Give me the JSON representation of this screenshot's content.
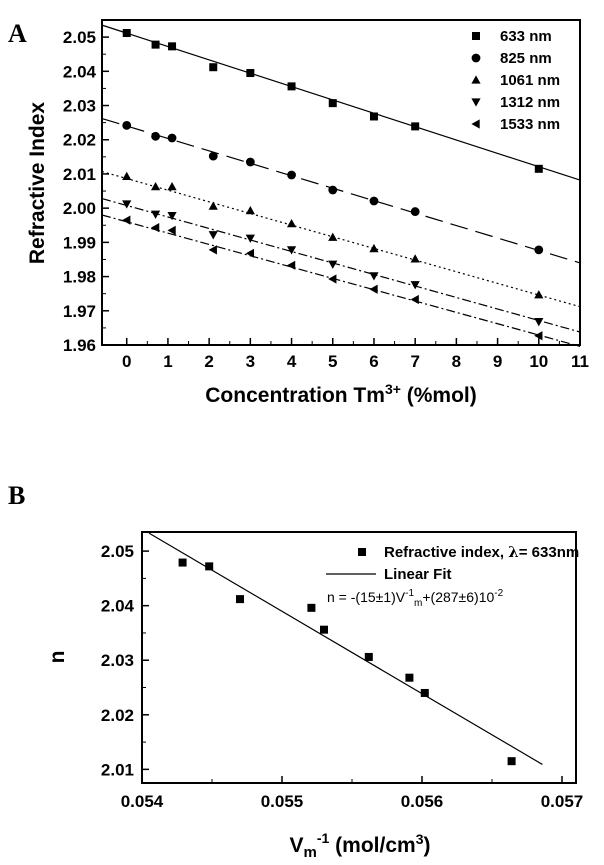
{
  "chart_data": [
    {
      "panel": "A",
      "type": "scatter",
      "xlabel": "Concentration Tm",
      "xlabel_sup": "3+",
      "xlabel_tail": " (%mol)",
      "ylabel": "Refractive Index",
      "xlim": [
        -0.6,
        11
      ],
      "ylim": [
        1.96,
        2.055
      ],
      "xticks": [
        0,
        1,
        2,
        3,
        4,
        5,
        6,
        7,
        8,
        9,
        10,
        11
      ],
      "yticks": [
        1.96,
        1.97,
        1.98,
        1.99,
        2.0,
        2.01,
        2.02,
        2.03,
        2.04,
        2.05
      ],
      "ytick_labels": [
        "1.96",
        "1.97",
        "1.98",
        "1.99",
        "2.00",
        "2.01",
        "2.02",
        "2.03",
        "2.04",
        "2.05"
      ],
      "legend_position": "top-right",
      "series": [
        {
          "name": "633 nm",
          "marker": "square",
          "dash": "solid",
          "x": [
            0,
            0.7,
            1.1,
            2.1,
            3,
            4,
            5,
            6,
            7,
            10
          ],
          "y": [
            2.0512,
            2.0478,
            2.0473,
            2.0412,
            2.0395,
            2.0356,
            2.0307,
            2.0268,
            2.0239,
            2.0115
          ],
          "fit": [
            [
              -0.6,
              2.0535
            ],
            [
              11,
              2.0082
            ]
          ]
        },
        {
          "name": "825 nm",
          "marker": "circle",
          "dash": "longdash",
          "x": [
            0,
            0.7,
            1.1,
            2.1,
            3,
            4,
            5,
            6,
            7,
            10
          ],
          "y": [
            2.0242,
            2.021,
            2.0205,
            2.0152,
            2.0135,
            2.0097,
            2.0053,
            2.0021,
            1.999,
            1.9878
          ],
          "fit": [
            [
              -0.6,
              2.0262
            ],
            [
              11,
              1.984
            ]
          ]
        },
        {
          "name": "1061 nm",
          "marker": "triangle-up",
          "dash": "dotted",
          "x": [
            0,
            0.7,
            1.1,
            2.1,
            3,
            4,
            5,
            6,
            7,
            10
          ],
          "y": [
            2.0093,
            2.0063,
            2.0063,
            2.0006,
            1.9993,
            1.9955,
            1.9915,
            1.9882,
            1.9852,
            1.9747
          ],
          "fit": [
            [
              -0.6,
              2.0107
            ],
            [
              11,
              1.9712
            ]
          ]
        },
        {
          "name": "1312 nm",
          "marker": "triangle-down",
          "dash": "dashdot",
          "x": [
            0,
            0.7,
            1.1,
            2.1,
            3,
            4,
            5,
            6,
            7,
            10
          ],
          "y": [
            2.0012,
            1.9982,
            1.9978,
            1.9922,
            1.9912,
            1.9878,
            1.9836,
            1.9802,
            1.9776,
            1.9668
          ],
          "fit": [
            [
              -0.6,
              2.0028
            ],
            [
              11,
              1.9638
            ]
          ]
        },
        {
          "name": "1533 nm",
          "marker": "triangle-left",
          "dash": "dashdot",
          "x": [
            0,
            0.7,
            1.1,
            2.1,
            3,
            4,
            5,
            6,
            7,
            10
          ],
          "y": [
            1.9965,
            1.9943,
            1.9935,
            1.9878,
            1.9868,
            1.9833,
            1.9793,
            1.9763,
            1.9733,
            1.9627
          ],
          "fit": [
            [
              -0.6,
              1.998
            ],
            [
              11,
              1.9596
            ]
          ]
        }
      ]
    },
    {
      "panel": "B",
      "type": "scatter",
      "xlabel": "V",
      "xlabel_sub": "m",
      "xlabel_sup": "-1",
      "xlabel_tail": " (mol/cm",
      "xlabel_sup2": "3",
      "xlabel_end": ")",
      "ylabel": "n",
      "xlim": [
        0.054,
        0.0571
      ],
      "ylim": [
        2.0075,
        2.0535
      ],
      "xticks": [
        0.054,
        0.055,
        0.056,
        0.057
      ],
      "xtick_labels": [
        "0.054",
        "0.055",
        "0.056",
        "0.057"
      ],
      "yticks": [
        2.01,
        2.02,
        2.03,
        2.04,
        2.05
      ],
      "ytick_labels": [
        "2.01",
        "2.02",
        "2.03",
        "2.04",
        "2.05"
      ],
      "legend_position": "top-right",
      "legend": {
        "points_label": "Refractive index, ",
        "points_lambda": "λ",
        "points_tail": "= 633nm",
        "fit_label": "Linear Fit",
        "equation_pre": "n = -(15±1)V",
        "equation_sup": "-1",
        "equation_sub": "m",
        "equation_post": "+(287±6)10",
        "equation_sup2": "-2"
      },
      "series": [
        {
          "name": "Refractive index, λ= 633nm",
          "marker": "square",
          "x": [
            0.05429,
            0.05448,
            0.0547,
            0.05521,
            0.0553,
            0.05562,
            0.05591,
            0.05602,
            0.05664
          ],
          "y": [
            2.0479,
            2.0472,
            2.0412,
            2.0396,
            2.0356,
            2.0306,
            2.0268,
            2.024,
            2.0115
          ]
        },
        {
          "name": "Linear Fit",
          "type": "line",
          "dash": "solid",
          "x": [
            0.05405,
            0.05686
          ],
          "y": [
            2.0533,
            2.0109
          ]
        }
      ]
    }
  ]
}
